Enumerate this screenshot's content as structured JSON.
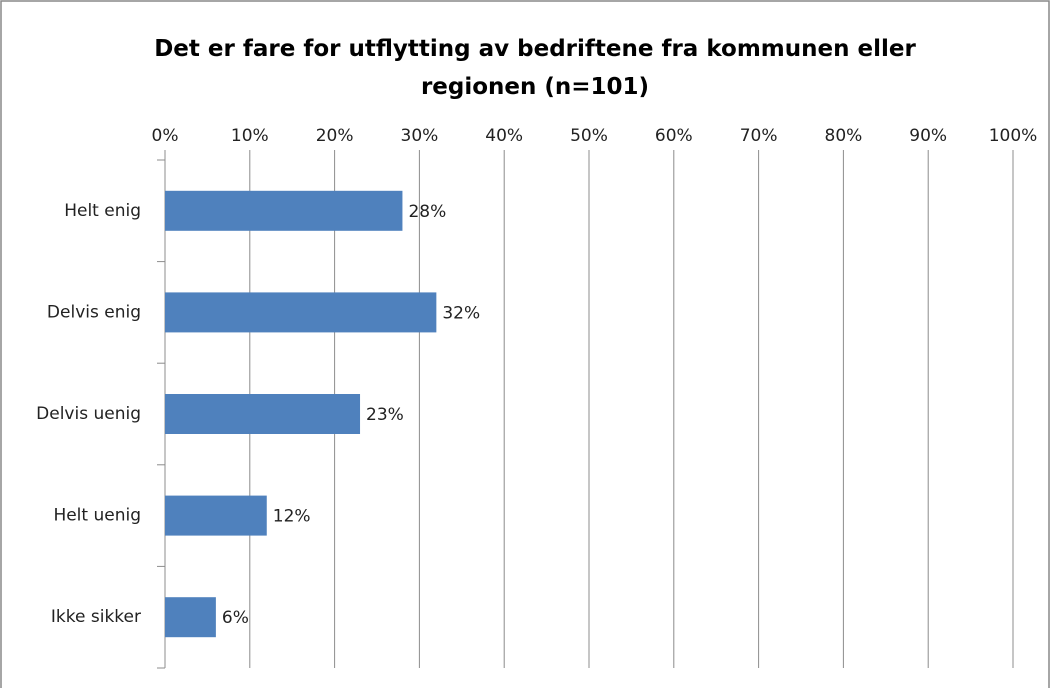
{
  "chart_data": {
    "type": "bar",
    "orientation": "horizontal",
    "title": "Det er fare for utflytting av bedriftene fra kommunen eller regionen (n=101)",
    "categories": [
      "Helt enig",
      "Delvis enig",
      "Delvis uenig",
      "Helt uenig",
      "Ikke sikker"
    ],
    "values": [
      28,
      32,
      23,
      12,
      6
    ],
    "value_labels": [
      "28%",
      "32%",
      "23%",
      "12%",
      "6%"
    ],
    "color": "#4f81bd",
    "xlim": [
      0,
      100
    ],
    "xticks": [
      {
        "value": 0,
        "label": "0%"
      },
      {
        "value": 10,
        "label": "10%"
      },
      {
        "value": 20,
        "label": "20%"
      },
      {
        "value": 30,
        "label": "30%"
      },
      {
        "value": 40,
        "label": "40%"
      },
      {
        "value": 50,
        "label": "50%"
      },
      {
        "value": 60,
        "label": "60%"
      },
      {
        "value": 70,
        "label": "70%"
      },
      {
        "value": 80,
        "label": "80%"
      },
      {
        "value": 90,
        "label": "90%"
      },
      {
        "value": 100,
        "label": "100%"
      }
    ],
    "grid": true
  }
}
